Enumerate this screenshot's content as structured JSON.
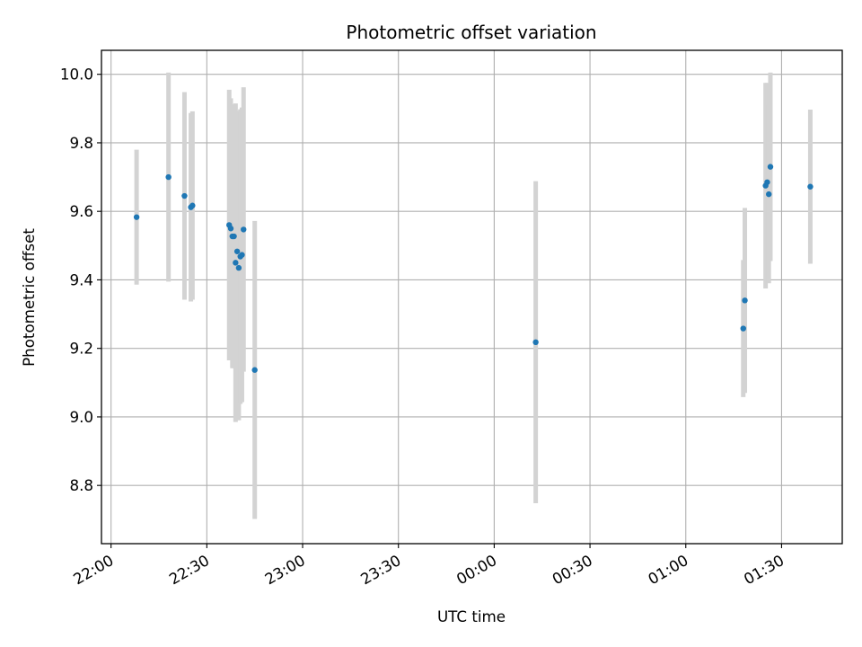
{
  "chart_data": {
    "type": "scatter",
    "title": "Photometric offset variation",
    "xlabel": "UTC time",
    "ylabel": "Photometric offset",
    "x_tick_labels": [
      "22:00",
      "22:30",
      "23:00",
      "23:30",
      "00:00",
      "00:30",
      "01:00",
      "01:30"
    ],
    "y_tick_labels": [
      "8.8",
      "9.0",
      "9.2",
      "9.4",
      "9.6",
      "9.8",
      "10.0"
    ],
    "y_ticks": [
      8.8,
      9.0,
      9.2,
      9.4,
      9.6,
      9.8,
      10.0
    ],
    "xlim": [
      "21:57",
      "01:49"
    ],
    "ylim": [
      8.63,
      10.07
    ],
    "grid": true,
    "errorbar_color": "#d3d3d3",
    "marker_color": "#1f77b4",
    "points": [
      {
        "x": "22:08",
        "y": 9.583,
        "yerr": 0.197
      },
      {
        "x": "22:18",
        "y": 9.7,
        "yerr": 0.305
      },
      {
        "x": "22:23",
        "y": 9.645,
        "yerr": 0.303
      },
      {
        "x": "22:25",
        "y": 9.612,
        "yerr": 0.275
      },
      {
        "x": "22:25.5",
        "y": 9.617,
        "yerr": 0.275
      },
      {
        "x": "22:37",
        "y": 9.56,
        "yerr": 0.395
      },
      {
        "x": "22:37.5",
        "y": 9.55,
        "yerr": 0.38
      },
      {
        "x": "22:38",
        "y": 9.527,
        "yerr": 0.385
      },
      {
        "x": "22:38.5",
        "y": 9.527,
        "yerr": 0.385
      },
      {
        "x": "22:39",
        "y": 9.45,
        "yerr": 0.465
      },
      {
        "x": "22:39.5",
        "y": 9.483,
        "yerr": 0.41
      },
      {
        "x": "22:40",
        "y": 9.435,
        "yerr": 0.445
      },
      {
        "x": "22:40.5",
        "y": 9.468,
        "yerr": 0.43
      },
      {
        "x": "22:41",
        "y": 9.473,
        "yerr": 0.43
      },
      {
        "x": "22:41.5",
        "y": 9.547,
        "yerr": 0.415
      },
      {
        "x": "22:45",
        "y": 9.137,
        "yerr": 0.435
      },
      {
        "x": "00:13",
        "y": 9.218,
        "yerr": 0.47
      },
      {
        "x": "01:18",
        "y": 9.258,
        "yerr": 0.2
      },
      {
        "x": "01:18.5",
        "y": 9.34,
        "yerr": 0.27
      },
      {
        "x": "01:25",
        "y": 9.675,
        "yerr": 0.3
      },
      {
        "x": "01:25.5",
        "y": 9.685,
        "yerr": 0.29
      },
      {
        "x": "01:26",
        "y": 9.65,
        "yerr": 0.26
      },
      {
        "x": "01:26.5",
        "y": 9.73,
        "yerr": 0.275
      },
      {
        "x": "01:39",
        "y": 9.672,
        "yerr": 0.225
      }
    ]
  }
}
